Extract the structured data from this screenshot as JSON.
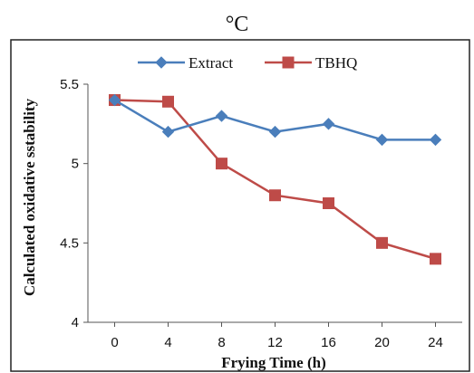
{
  "chart_data": {
    "type": "line",
    "caption": "°C",
    "x": [
      0,
      4,
      8,
      12,
      16,
      20,
      24
    ],
    "series": [
      {
        "name": "Extract",
        "values": [
          5.4,
          5.2,
          5.3,
          5.2,
          5.25,
          5.15,
          5.15
        ],
        "color": "#4a7ebb",
        "marker": "diamond"
      },
      {
        "name": "TBHQ",
        "values": [
          5.4,
          5.39,
          5.0,
          4.8,
          4.75,
          4.5,
          4.4
        ],
        "color": "#be4b48",
        "marker": "square"
      }
    ],
    "xlabel": "Frying Time (h)",
    "ylabel": "Calculated oxidative sstability",
    "ylim": [
      4,
      5.5
    ],
    "yticks": [
      "4",
      "4.5",
      "5",
      "5.5"
    ],
    "xticks": [
      "0",
      "4",
      "8",
      "12",
      "16",
      "20",
      "24"
    ],
    "legend": "top-center",
    "grid": false
  }
}
